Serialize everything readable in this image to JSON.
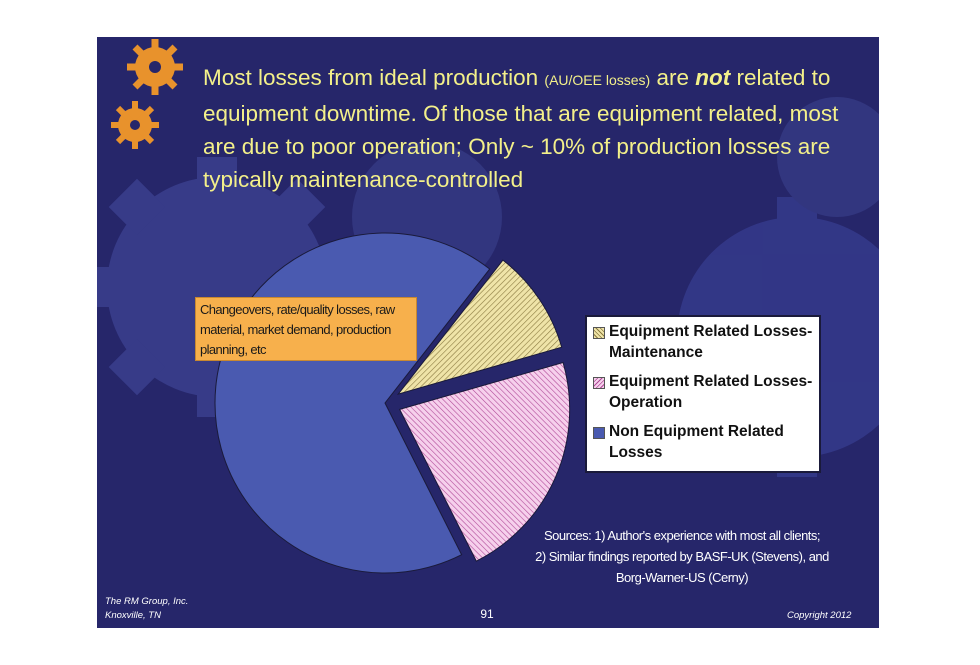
{
  "slide": {
    "title_part1": "Most losses from ideal production",
    "title_small": "(AU/OEE losses)",
    "title_part2": "are",
    "title_emph": "not",
    "title_part3": "related to equipment downtime.  Of those that are equipment related, most are due to poor operation; Only ~ 10% of production losses are typically maintenance-controlled",
    "callout_text": "Changeovers, rate/quality losses, raw material, market demand, production planning, etc",
    "sources_line1": "Sources: 1) Author's experience with most all clients;",
    "sources_line2": "2) Similar findings reported by BASF-UK (Stevens), and",
    "sources_line3": "Borg-Warner-US (Cerny)",
    "footer_company": "The RM Group, Inc.",
    "footer_city": "Knoxville, TN",
    "page_number": "91",
    "copyright": "Copyright 2012",
    "colors": {
      "background": "#26266a",
      "title_text": "#f3f08a",
      "gear": "#e8922c"
    }
  },
  "chart_data": {
    "type": "pie",
    "title": "",
    "slices": [
      {
        "name": "Equipment Related Losses-Maintenance",
        "value": 10,
        "color": "#efe4a8",
        "pattern": "hatch",
        "exploded": true
      },
      {
        "name": "Equipment Related Losses- Operation",
        "value": 22,
        "color": "#f0b8e0",
        "pattern": "hatch",
        "exploded": true
      },
      {
        "name": "Non Equipment Related Losses",
        "value": 68,
        "color": "#4a5ab0",
        "pattern": "solid",
        "exploded": false
      }
    ],
    "legend": {
      "position": "right",
      "entries": [
        "Equipment Related Losses-Maintenance",
        "Equipment Related Losses- Operation",
        "Non Equipment Related Losses"
      ]
    }
  }
}
